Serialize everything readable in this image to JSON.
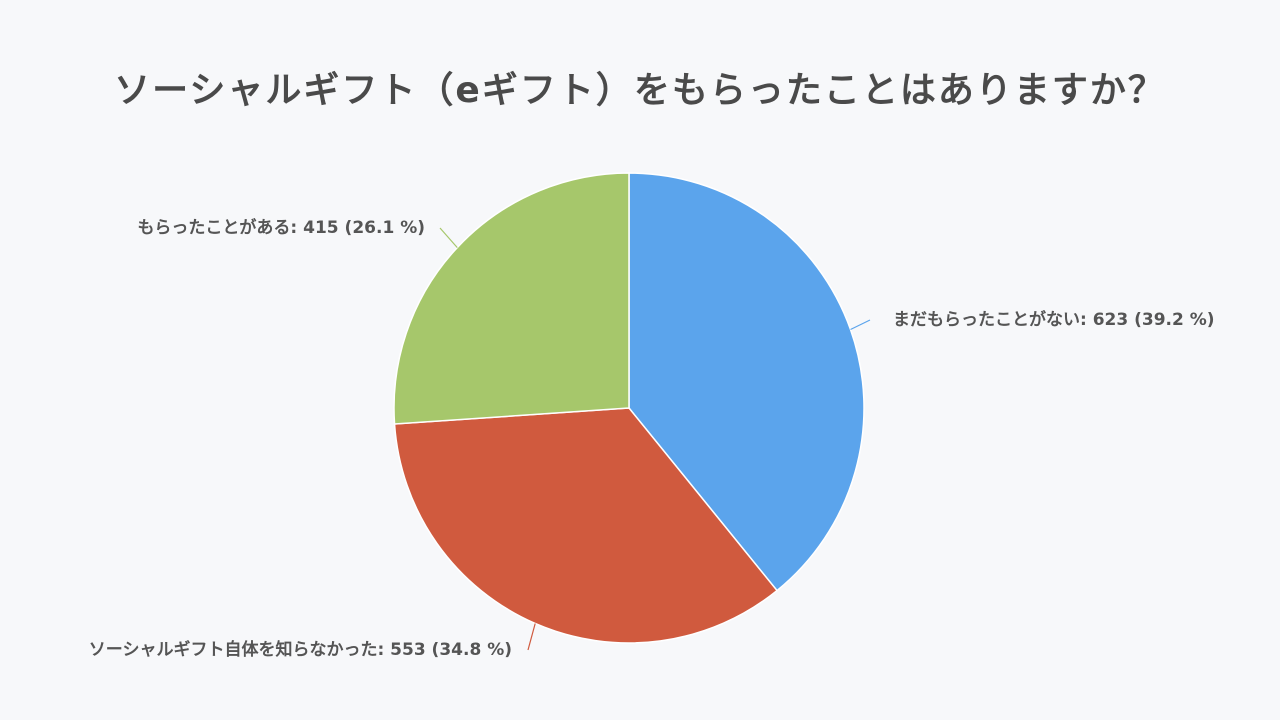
{
  "chart_data": {
    "type": "pie",
    "title": "ソーシャルギフト（eギフト）をもらったことはありますか？",
    "slices": [
      {
        "label": "まだもらったことがない",
        "value": 623,
        "percent": 39.2,
        "color": "#5ba4ec",
        "text": "まだもらったことがない: 623 (39.2 %)"
      },
      {
        "label": "ソーシャルギフト自体を知らなかった",
        "value": 553,
        "percent": 34.8,
        "color": "#d05a3e",
        "text": "ソーシャルギフト自体を知らなかった: 553 (34.8 %)"
      },
      {
        "label": "もらったことがある",
        "value": 415,
        "percent": 26.1,
        "color": "#a6c76b",
        "text": "もらったことがある: 415 (26.1 %)"
      }
    ],
    "start_angle": "top",
    "direction": "clockwise",
    "legend": "none"
  }
}
